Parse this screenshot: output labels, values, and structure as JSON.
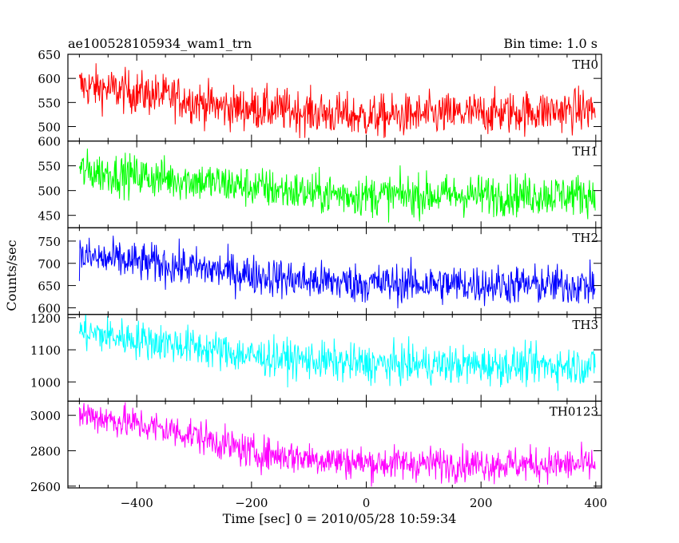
{
  "header": {
    "title": "ae100528105934_wam1_trn",
    "bin_time": "Bin time: 1.0 s"
  },
  "chart_data": {
    "type": "line",
    "ylabel": "Counts/sec",
    "xlabel": "Time [sec] 0 = 2010/05/28 10:59:34",
    "xlim": [
      -520,
      410
    ],
    "x_range_data": [
      -500,
      399
    ],
    "xticks": [
      -400,
      -200,
      0,
      200,
      400
    ],
    "xticklabels": [
      "−400",
      "−200",
      "0",
      "200",
      "400"
    ],
    "panels": [
      {
        "name": "TH0",
        "color": "#ff0000",
        "ylim": [
          470,
          650
        ],
        "yticks": [
          500,
          550,
          600,
          650
        ],
        "trend": [
          [
            -500,
            585
          ],
          [
            -330,
            560
          ],
          [
            -250,
            540
          ],
          [
            -150,
            535
          ],
          [
            0,
            520
          ],
          [
            400,
            535
          ]
        ],
        "noise": 30
      },
      {
        "name": "TH1",
        "color": "#00ff00",
        "ylim": [
          425,
          600
        ],
        "yticks": [
          450,
          500,
          550,
          600
        ],
        "trend": [
          [
            -500,
            540
          ],
          [
            -300,
            520
          ],
          [
            -100,
            495
          ],
          [
            0,
            490
          ],
          [
            400,
            492
          ]
        ],
        "noise": 28
      },
      {
        "name": "TH2",
        "color": "#0000ff",
        "ylim": [
          585,
          780
        ],
        "yticks": [
          600,
          650,
          700,
          750
        ],
        "trend": [
          [
            -500,
            715
          ],
          [
            -300,
            690
          ],
          [
            -100,
            660
          ],
          [
            0,
            655
          ],
          [
            400,
            650
          ]
        ],
        "noise": 30
      },
      {
        "name": "TH3",
        "color": "#00ffff",
        "ylim": [
          940,
          1210
        ],
        "yticks": [
          1000,
          1100,
          1200
        ],
        "trend": [
          [
            -500,
            1155
          ],
          [
            -300,
            1110
          ],
          [
            -200,
            1080
          ],
          [
            0,
            1055
          ],
          [
            400,
            1050
          ]
        ],
        "noise": 40
      },
      {
        "name": "TH0123",
        "color": "#ff00ff",
        "ylim": [
          2590,
          3080
        ],
        "yticks": [
          2600,
          2800,
          3000
        ],
        "trend": [
          [
            -500,
            3010
          ],
          [
            -300,
            2890
          ],
          [
            -200,
            2790
          ],
          [
            0,
            2730
          ],
          [
            400,
            2720
          ]
        ],
        "noise": 65
      }
    ]
  }
}
